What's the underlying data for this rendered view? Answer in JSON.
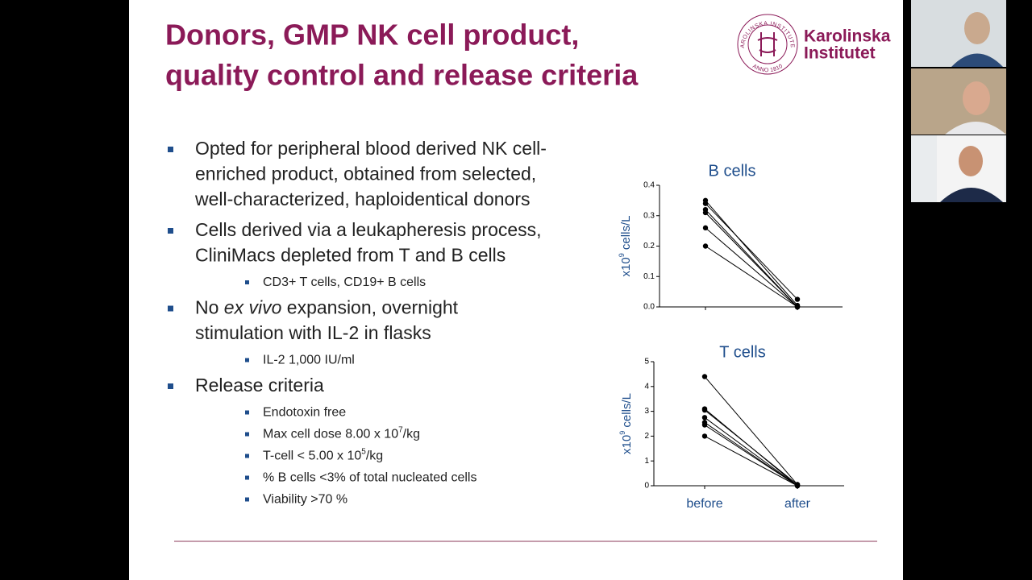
{
  "slide": {
    "title_lines": [
      "Donors, GMP NK cell product,",
      "quality control and release criteria"
    ],
    "logo": {
      "seal_text": "KAROLINSKA INSTITUTET",
      "seal_year": "ANNO 1810",
      "name_lines": [
        "Karolinska",
        "Institutet"
      ]
    },
    "bullets": [
      {
        "level": 1,
        "lines": [
          "Opted for peripheral blood derived NK cell-",
          "enriched product, obtained from selected,",
          "well-characterized, haploidentical donors"
        ]
      },
      {
        "level": 1,
        "lines": [
          "Cells derived via a leukapheresis process,",
          "CliniMacs depleted from T and B cells"
        ]
      },
      {
        "level": 2,
        "lines": [
          "CD3+ T cells, CD19+ B cells"
        ]
      },
      {
        "level": 1,
        "lines": [
          [
            {
              "text": "No "
            },
            {
              "text": "ex vivo",
              "style": "italic"
            },
            {
              "text": " expansion, overnight"
            }
          ],
          "stimulation with IL-2 in flasks"
        ]
      },
      {
        "level": 2,
        "lines": [
          "IL-2 1,000 IU/ml"
        ]
      },
      {
        "level": 1,
        "lines": [
          "Release criteria"
        ]
      },
      {
        "level": 2,
        "lines": [
          "Endotoxin free"
        ]
      },
      {
        "level": 2,
        "lines": [
          [
            {
              "text": "Max cell dose 8.00 x 10"
            },
            {
              "text": "7",
              "style": "sup"
            },
            {
              "text": "/kg"
            }
          ]
        ]
      },
      {
        "level": 2,
        "lines": [
          [
            {
              "text": "T-cell < 5.00 x 10"
            },
            {
              "text": "5",
              "style": "sup"
            },
            {
              "text": "/kg"
            }
          ]
        ]
      },
      {
        "level": 2,
        "lines": [
          "% B cells <3% of total nucleated cells"
        ]
      },
      {
        "level": 2,
        "lines": [
          "Viability >70 %"
        ]
      }
    ]
  },
  "chart_data": [
    {
      "type": "line",
      "title": "B cells",
      "categories": [
        null,
        null
      ],
      "y_label": [
        {
          "text": "x10"
        },
        {
          "text": "9",
          "style": "sup"
        },
        {
          "text": " cells/L"
        }
      ],
      "ylim": [
        0,
        0.4
      ],
      "yticks": [
        {
          "value": 0,
          "label": "0.0"
        },
        0.1,
        0.2,
        0.3,
        0.4
      ],
      "color": "#000000",
      "series": [
        {
          "values": [
            0.35,
            0.005
          ]
        },
        {
          "values": [
            0.34,
            0.025
          ]
        },
        {
          "values": [
            0.32,
            0
          ]
        },
        {
          "values": [
            0.31,
            0
          ]
        },
        {
          "values": [
            0.26,
            0
          ]
        },
        {
          "values": [
            0.2,
            0
          ]
        }
      ]
    },
    {
      "type": "line",
      "title": "T cells",
      "categories": [
        "before",
        "after"
      ],
      "y_label": [
        {
          "text": "x10"
        },
        {
          "text": "9",
          "style": "sup"
        },
        {
          "text": " cells/L"
        }
      ],
      "ylim": [
        0,
        5
      ],
      "yticks": [
        0,
        1,
        2,
        3,
        4,
        5
      ],
      "color": "#000000",
      "series": [
        {
          "values": [
            4.4,
            0.05
          ]
        },
        {
          "values": [
            3.1,
            0
          ]
        },
        {
          "values": [
            3.05,
            0.05
          ]
        },
        {
          "values": [
            2.75,
            0
          ]
        },
        {
          "values": [
            2.55,
            0
          ]
        },
        {
          "values": [
            2.45,
            0
          ]
        },
        {
          "values": [
            2.0,
            0
          ]
        }
      ]
    }
  ]
}
